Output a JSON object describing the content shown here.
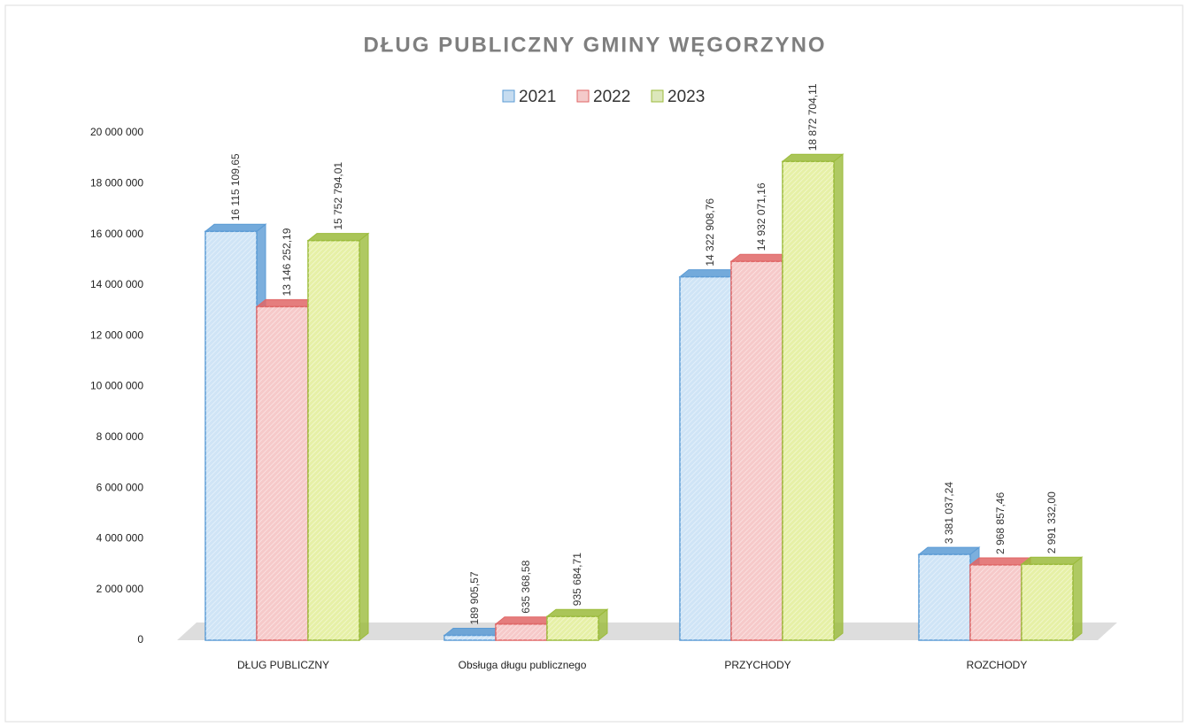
{
  "chart_data": {
    "type": "bar3d",
    "title": "DŁUG PUBLICZNY GMINY WĘGORZYNO",
    "categories": [
      "DŁUG PUBLICZNY",
      "Obsługa długu publicznego",
      "PRZYCHODY",
      "ROZCHODY"
    ],
    "series": [
      {
        "name": "2021",
        "color": "#5b9bd5",
        "values": [
          16115109.65,
          189905.57,
          14322908.76,
          3381037.24
        ],
        "value_labels": [
          "16 115 109,65",
          "189 905,57",
          "14 322 908,76",
          "3 381 037,24"
        ]
      },
      {
        "name": "2022",
        "color": "#e06666",
        "values": [
          13146252.19,
          635368.58,
          14932071.16,
          2968857.46
        ],
        "value_labels": [
          "13 146 252,19",
          "635 368,58",
          "14 932 071,16",
          "2 968 857,46"
        ]
      },
      {
        "name": "2023",
        "color": "#9bbb3b",
        "values": [
          15752794.01,
          935684.71,
          18872704.11,
          2991332.0
        ],
        "value_labels": [
          "15 752 794,01",
          "935 684,71",
          "18 872 704,11",
          "2 991 332,00"
        ]
      }
    ],
    "ylim": [
      0,
      20000000
    ],
    "yticks": [
      0,
      {
        "value": 2000000,
        "label": "2 000 000"
      },
      {
        "value": 4000000,
        "label": "4 000 000"
      },
      {
        "value": 6000000,
        "label": "6 000 000"
      },
      {
        "value": 8000000,
        "label": "8 000 000"
      },
      {
        "value": 10000000,
        "label": "10 000 000"
      },
      {
        "value": 12000000,
        "label": "12 000 000"
      },
      {
        "value": 14000000,
        "label": "14 000 000"
      },
      {
        "value": 16000000,
        "label": "16 000 000"
      },
      {
        "value": 18000000,
        "label": "18 000 000"
      },
      {
        "value": 20000000,
        "label": "20 000 000"
      }
    ],
    "legend": "top"
  }
}
